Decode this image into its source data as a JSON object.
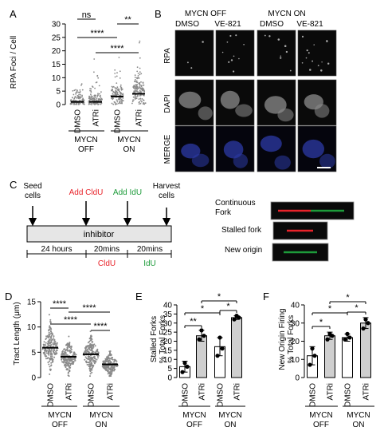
{
  "panelA": {
    "letter": "A",
    "ylabel": "RPA Foci / Cell",
    "groups": [
      "MYCN OFF",
      "MYCN ON"
    ],
    "significance": [
      {
        "from": 0,
        "to": 1,
        "label": "ns"
      },
      {
        "from": 2,
        "to": 3,
        "label": "**"
      },
      {
        "from": 0,
        "to": 2,
        "label": "****"
      },
      {
        "from": 1,
        "to": 3,
        "label": "****"
      }
    ],
    "chart_data": {
      "type": "scatter",
      "categories": [
        "DMSO",
        "ATRi",
        "DMSO",
        "ATRi"
      ],
      "yticks": [
        0,
        5,
        10,
        15,
        20,
        25,
        30
      ],
      "ylim": [
        0,
        30
      ],
      "medians": [
        1,
        1,
        3,
        4
      ]
    }
  },
  "panelB": {
    "letter": "B",
    "groups": [
      "MYCN OFF",
      "MYCN ON"
    ],
    "columns": [
      "DMSO",
      "VE-821",
      "DMSO",
      "VE-821"
    ],
    "rows": [
      "RPA",
      "DAPI",
      "MERGE"
    ]
  },
  "panelC": {
    "letter": "C",
    "events": [
      "Seed cells",
      "Add CldU",
      "Add IdU",
      "Harvest cells"
    ],
    "bar_label": "inhibitor",
    "durations": [
      "24 hours",
      "20mins",
      "20mins"
    ],
    "labels": [
      "CldU",
      "IdU"
    ],
    "fiber_labels": [
      "Continuous Fork",
      "Stalled fork",
      "New origin"
    ],
    "colors": {
      "cldu": "#e8232a",
      "idu": "#1d9b3a",
      "bar": "#e6e6e6"
    }
  },
  "panelD": {
    "letter": "D",
    "ylabel": "Tract Length (μm)",
    "groups": [
      "MYCN OFF",
      "MYCN ON"
    ],
    "significance": [
      "****",
      "****",
      "****",
      "****"
    ],
    "chart_data": {
      "type": "scatter",
      "categories": [
        "DMSO",
        "ATRi",
        "DMSO",
        "ATRi"
      ],
      "yticks": [
        0,
        5,
        10,
        15
      ],
      "ylim": [
        0,
        15
      ],
      "medians": [
        5.9,
        4.1,
        4.6,
        2.6
      ]
    }
  },
  "panelE": {
    "letter": "E",
    "ylabel": "Stalled Forks % Total Forks",
    "groups": [
      "MYCN OFF",
      "MYCN ON"
    ],
    "significance": [
      "**",
      "*",
      "*",
      "*"
    ],
    "chart_data": {
      "type": "bar",
      "categories": [
        "DMSO",
        "ATRi",
        "DMSO",
        "ATRi"
      ],
      "values": [
        6,
        23,
        17,
        33
      ],
      "errors": [
        3,
        3,
        5,
        1
      ],
      "points": [
        [
          3,
          6,
          8
        ],
        [
          21,
          23,
          26
        ],
        [
          12,
          16,
          22
        ],
        [
          32,
          33,
          34
        ]
      ],
      "yticks": [
        0,
        5,
        10,
        15,
        20,
        25,
        30,
        35,
        40
      ],
      "ylim": [
        0,
        40
      ]
    }
  },
  "panelF": {
    "letter": "F",
    "ylabel": "New Origin Firing % Total Forks",
    "groups": [
      "MYCN OFF",
      "MYCN ON"
    ],
    "significance": [
      "*",
      "*",
      "*",
      "*"
    ],
    "chart_data": {
      "type": "bar",
      "categories": [
        "DMSO",
        "ATRi",
        "DMSO",
        "ATRi"
      ],
      "values": [
        12,
        23,
        22,
        30
      ],
      "errors": [
        5,
        2,
        2,
        3
      ],
      "points": [
        [
          7,
          12,
          16
        ],
        [
          21,
          23,
          24
        ],
        [
          21,
          22,
          24
        ],
        [
          27,
          30,
          32
        ]
      ],
      "yticks": [
        0,
        10,
        20,
        30,
        40
      ],
      "ylim": [
        0,
        40
      ]
    }
  }
}
